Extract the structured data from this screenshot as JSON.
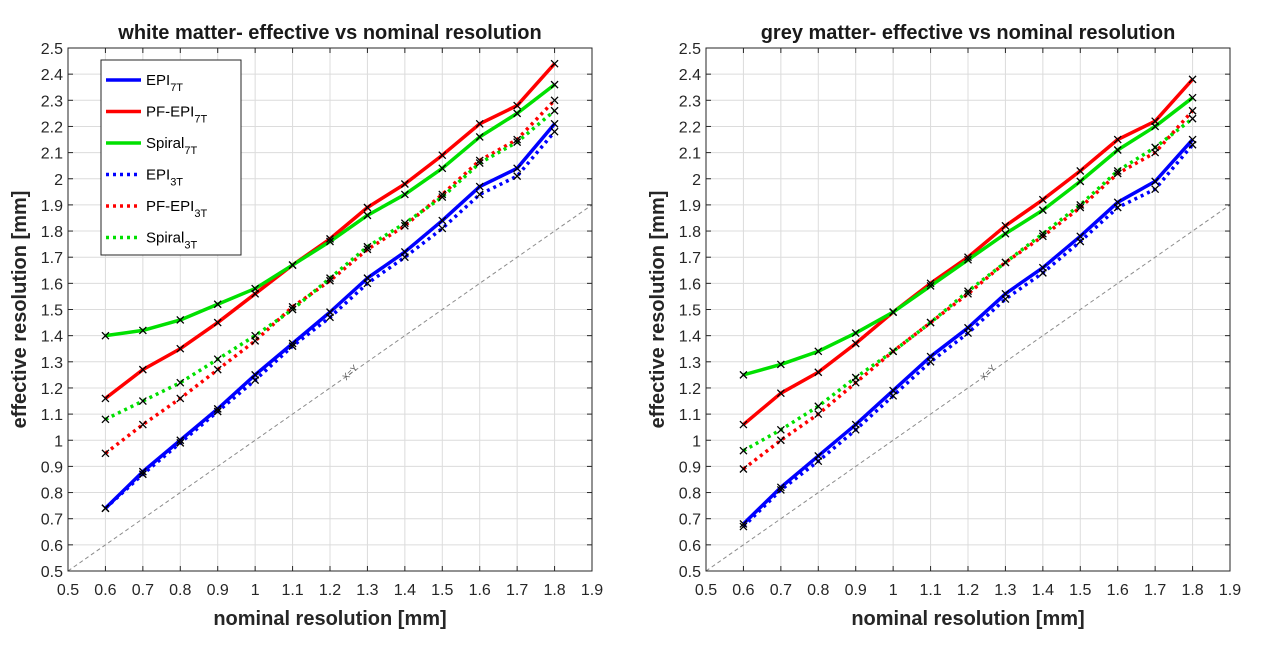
{
  "chart_data": [
    {
      "type": "line",
      "title": "white matter- effective vs nominal resolution",
      "xlabel": "nominal resolution [mm]",
      "ylabel": "effective resolution [mm]",
      "xlim": [
        0.5,
        1.9
      ],
      "ylim": [
        0.5,
        2.5
      ],
      "xticks": [
        "0.5",
        "0.6",
        "0.7",
        "0.8",
        "0.9",
        "1",
        "1.1",
        "1.2",
        "1.3",
        "1.4",
        "1.5",
        "1.6",
        "1.7",
        "1.8",
        "1.9"
      ],
      "yticks": [
        "0.5",
        "0.6",
        "0.7",
        "0.8",
        "0.9",
        "1",
        "1.1",
        "1.2",
        "1.3",
        "1.4",
        "1.5",
        "1.6",
        "1.7",
        "1.8",
        "1.9",
        "2",
        "2.1",
        "2.2",
        "2.3",
        "2.4",
        "2.5"
      ],
      "grid": true,
      "legend": "top-left",
      "reference_line": {
        "label": "X=Y"
      },
      "x": [
        0.6,
        0.7,
        0.8,
        0.9,
        1.0,
        1.1,
        1.2,
        1.3,
        1.4,
        1.5,
        1.6,
        1.7,
        1.8
      ],
      "series": [
        {
          "name": "EPI",
          "sub": "7T",
          "color": "#0000ff",
          "style": "solid",
          "values": [
            0.74,
            0.88,
            1.0,
            1.12,
            1.25,
            1.37,
            1.49,
            1.62,
            1.72,
            1.84,
            1.97,
            2.04,
            2.21
          ]
        },
        {
          "name": "PF-EPI",
          "sub": "7T",
          "color": "#ff0000",
          "style": "solid",
          "values": [
            1.16,
            1.27,
            1.35,
            1.45,
            1.56,
            1.67,
            1.77,
            1.89,
            1.98,
            2.09,
            2.21,
            2.28,
            2.44
          ]
        },
        {
          "name": "Spiral",
          "sub": "7T",
          "color": "#00e000",
          "style": "solid",
          "values": [
            1.4,
            1.42,
            1.46,
            1.52,
            1.58,
            1.67,
            1.76,
            1.86,
            1.94,
            2.04,
            2.16,
            2.25,
            2.36
          ]
        },
        {
          "name": "EPI",
          "sub": "3T",
          "color": "#0000ff",
          "style": "dotted",
          "values": [
            0.74,
            0.87,
            0.99,
            1.11,
            1.23,
            1.36,
            1.47,
            1.6,
            1.7,
            1.81,
            1.94,
            2.01,
            2.18
          ]
        },
        {
          "name": "PF-EPI",
          "sub": "3T",
          "color": "#ff0000",
          "style": "dotted",
          "values": [
            0.95,
            1.06,
            1.16,
            1.27,
            1.38,
            1.51,
            1.61,
            1.73,
            1.82,
            1.94,
            2.07,
            2.15,
            2.3
          ]
        },
        {
          "name": "Spiral",
          "sub": "3T",
          "color": "#00e000",
          "style": "dotted",
          "values": [
            1.08,
            1.15,
            1.22,
            1.31,
            1.4,
            1.5,
            1.62,
            1.74,
            1.83,
            1.93,
            2.06,
            2.14,
            2.26
          ]
        }
      ]
    },
    {
      "type": "line",
      "title": "grey matter- effective vs nominal resolution",
      "xlabel": "nominal resolution [mm]",
      "ylabel": "effective resolution [mm]",
      "xlim": [
        0.5,
        1.9
      ],
      "ylim": [
        0.5,
        2.5
      ],
      "xticks": [
        "0.5",
        "0.6",
        "0.7",
        "0.8",
        "0.9",
        "1",
        "1.1",
        "1.2",
        "1.3",
        "1.4",
        "1.5",
        "1.6",
        "1.7",
        "1.8",
        "1.9"
      ],
      "yticks": [
        "0.5",
        "0.6",
        "0.7",
        "0.8",
        "0.9",
        "1",
        "1.1",
        "1.2",
        "1.3",
        "1.4",
        "1.5",
        "1.6",
        "1.7",
        "1.8",
        "1.9",
        "2",
        "2.1",
        "2.2",
        "2.3",
        "2.4",
        "2.5"
      ],
      "grid": true,
      "reference_line": {
        "label": "X=Y"
      },
      "x": [
        0.6,
        0.7,
        0.8,
        0.9,
        1.0,
        1.1,
        1.2,
        1.3,
        1.4,
        1.5,
        1.6,
        1.7,
        1.8
      ],
      "series": [
        {
          "name": "EPI",
          "sub": "7T",
          "color": "#0000ff",
          "style": "solid",
          "values": [
            0.68,
            0.82,
            0.94,
            1.06,
            1.19,
            1.32,
            1.43,
            1.56,
            1.66,
            1.78,
            1.91,
            1.99,
            2.15
          ]
        },
        {
          "name": "PF-EPI",
          "sub": "7T",
          "color": "#ff0000",
          "style": "solid",
          "values": [
            1.06,
            1.18,
            1.26,
            1.37,
            1.49,
            1.6,
            1.7,
            1.82,
            1.92,
            2.03,
            2.15,
            2.22,
            2.38
          ]
        },
        {
          "name": "Spiral",
          "sub": "7T",
          "color": "#00e000",
          "style": "solid",
          "values": [
            1.25,
            1.29,
            1.34,
            1.41,
            1.49,
            1.59,
            1.69,
            1.79,
            1.88,
            1.99,
            2.11,
            2.2,
            2.31
          ]
        },
        {
          "name": "EPI",
          "sub": "3T",
          "color": "#0000ff",
          "style": "dotted",
          "values": [
            0.67,
            0.81,
            0.92,
            1.04,
            1.17,
            1.3,
            1.41,
            1.54,
            1.64,
            1.76,
            1.89,
            1.96,
            2.13
          ]
        },
        {
          "name": "PF-EPI",
          "sub": "3T",
          "color": "#ff0000",
          "style": "dotted",
          "values": [
            0.89,
            1.0,
            1.1,
            1.22,
            1.34,
            1.45,
            1.56,
            1.68,
            1.78,
            1.89,
            2.02,
            2.1,
            2.26
          ]
        },
        {
          "name": "Spiral",
          "sub": "3T",
          "color": "#00e000",
          "style": "dotted",
          "values": [
            0.96,
            1.04,
            1.13,
            1.24,
            1.34,
            1.45,
            1.57,
            1.68,
            1.79,
            1.9,
            2.03,
            2.12,
            2.23
          ]
        }
      ]
    }
  ]
}
